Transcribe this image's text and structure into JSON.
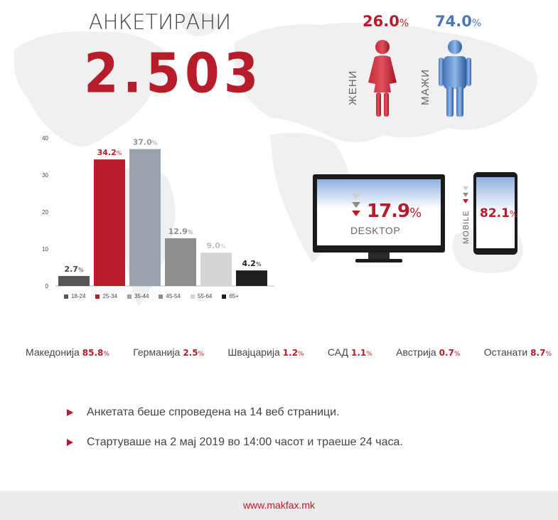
{
  "header": {
    "title": "АНКЕТИРАНИ",
    "total": "2.503"
  },
  "gender": {
    "women": {
      "label": "ЖЕНИ",
      "value": "26.0",
      "unit": "%",
      "color": "#b71c2b",
      "icon": "woman-icon"
    },
    "men": {
      "label": "МАЖИ",
      "value": "74.0",
      "unit": "%",
      "color": "#4a78b8",
      "icon": "man-icon"
    }
  },
  "chart_data": {
    "type": "bar",
    "categories": [
      "18-24",
      "25-34",
      "35-44",
      "45-54",
      "55-64",
      "65+"
    ],
    "values": [
      2.7,
      34.2,
      37.0,
      12.9,
      9.0,
      4.2
    ],
    "data_labels": [
      "2.7",
      "34.2",
      "37.0",
      "12.9",
      "9.0",
      "4.2"
    ],
    "colors": [
      "#555555",
      "#b71c2b",
      "#9aa3ab",
      "#8f8f8f",
      "#d4d4d4",
      "#1e1e1e"
    ],
    "label_colors": [
      "#444444",
      "#b71c2b",
      "#8f98a0",
      "#8f8f8f",
      "#bfbfbf",
      "#1e1e1e"
    ],
    "y_ticks": [
      0,
      10,
      20,
      30,
      40
    ],
    "ylim": [
      0,
      40
    ],
    "legend_position": "bottom",
    "unit": "%"
  },
  "devices": {
    "desktop": {
      "label": "DESKTOP",
      "value": "17.9",
      "unit": "%",
      "icon": "monitor-icon"
    },
    "mobile": {
      "label": "MOBILE",
      "value": "82.1",
      "unit": "%",
      "icon": "phone-icon"
    }
  },
  "countries": [
    {
      "name": "Македонија",
      "value": "85.8",
      "unit": "%"
    },
    {
      "name": "Германија",
      "value": "2.5",
      "unit": "%"
    },
    {
      "name": "Швајцарија",
      "value": "1.2",
      "unit": "%"
    },
    {
      "name": "САД",
      "value": "1.1",
      "unit": "%"
    },
    {
      "name": "Австрија",
      "value": "0.7",
      "unit": "%"
    },
    {
      "name": "Останати",
      "value": "8.7",
      "unit": "%"
    }
  ],
  "notes": [
    "Анкетата беше спроведена на 14 веб страници.",
    "Стартуваше на 2 мај 2019 во 14:00 часот и траеше 24 часа."
  ],
  "footer": {
    "url": "www.makfax.mk"
  },
  "colors": {
    "accent": "#b71c2b",
    "blue": "#4a78b8",
    "map": "#efefef"
  }
}
